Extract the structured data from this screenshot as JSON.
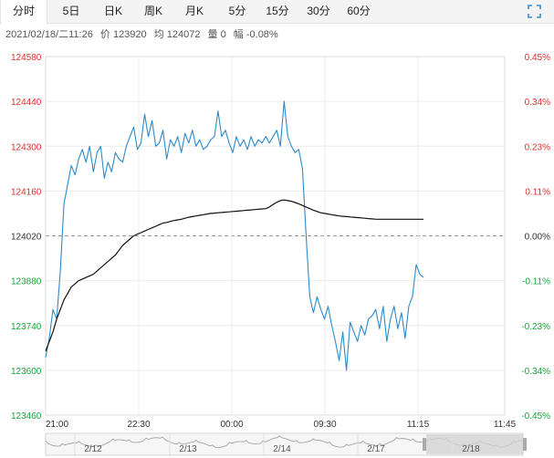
{
  "tabs": [
    {
      "label": "分时",
      "active": true
    },
    {
      "label": "5日",
      "active": false
    },
    {
      "label": "日K",
      "active": false
    },
    {
      "label": "周K",
      "active": false
    },
    {
      "label": "月K",
      "active": false
    },
    {
      "label": "5分",
      "active": false
    },
    {
      "label": "15分",
      "active": false
    },
    {
      "label": "30分",
      "active": false
    },
    {
      "label": "60分",
      "active": false
    }
  ],
  "info": {
    "datetime": "2021/02/18/二11:26",
    "price": "价 123920",
    "avg": "均 124072",
    "volume": "量 0",
    "change": "幅 -0.08%"
  },
  "icons": {
    "fullscreen": "fullscreen-icon"
  },
  "colors": {
    "price_line": "#2b8bcc",
    "avg_line": "#111111",
    "up": "#e0302b",
    "down": "#1aa53a",
    "grid": "#ececec",
    "baseline": "#999999"
  },
  "chart_data": {
    "type": "line",
    "y_ticks": [
      "124580",
      "124440",
      "124300",
      "124160",
      "124020",
      "123880",
      "123740",
      "123600",
      "123460"
    ],
    "y_values": [
      124580,
      124440,
      124300,
      124160,
      124020,
      123880,
      123740,
      123600,
      123460
    ],
    "pct_ticks": [
      "0.45%",
      "0.34%",
      "0.23%",
      "0.11%",
      "0.00%",
      "-0.11%",
      "-0.23%",
      "-0.34%",
      "-0.45%"
    ],
    "x_ticks": [
      "21:00",
      "22:30",
      "00:00",
      "09:30",
      "11:15",
      "11:45"
    ],
    "ylim": [
      123460,
      124580
    ],
    "baseline": 124020,
    "series": [
      {
        "values": [
          123640,
          123700,
          123790,
          123760,
          123910,
          124120,
          124180,
          124240,
          124210,
          124260,
          124290,
          124250,
          124300,
          124220,
          124280,
          124300,
          124200,
          124250,
          124220,
          124280,
          124260,
          124250,
          124300,
          124330,
          124360,
          124290,
          124310,
          124400,
          124330,
          124380,
          124300,
          124310,
          124350,
          124260,
          124320,
          124300,
          124330,
          124280,
          124340,
          124310,
          124350,
          124300,
          124320,
          124290,
          124300,
          124320,
          124330,
          124410,
          124330,
          124350,
          124310,
          124280,
          124330,
          124300,
          124320,
          124290,
          124330,
          124300,
          124320,
          124310,
          124330,
          124310,
          124330,
          124350,
          124300,
          124440,
          124330,
          124300,
          124280,
          124290,
          124230,
          124020,
          123830,
          123780,
          123830,
          123790,
          123760,
          123800,
          123740,
          123690,
          123630,
          123720,
          123600,
          123750,
          123720,
          123690,
          123740,
          123710,
          123760,
          123770,
          123790,
          123730,
          123800,
          123690,
          123760,
          123800,
          123730,
          123780,
          123700,
          123800,
          123830,
          123930,
          123900,
          123890
        ]
      },
      {
        "values": [
          123660,
          123690,
          123720,
          123760,
          123790,
          123820,
          123840,
          123860,
          123870,
          123880,
          123885,
          123890,
          123895,
          123900,
          123910,
          123920,
          123930,
          123940,
          123950,
          123960,
          123975,
          123990,
          124000,
          124010,
          124020,
          124025,
          124030,
          124035,
          124040,
          124045,
          124050,
          124055,
          124060,
          124062,
          124065,
          124068,
          124070,
          124072,
          124075,
          124078,
          124080,
          124082,
          124084,
          124086,
          124088,
          124090,
          124091,
          124092,
          124093,
          124094,
          124095,
          124096,
          124097,
          124098,
          124099,
          124100,
          124101,
          124102,
          124103,
          124104,
          124105,
          124110,
          124118,
          124125,
          124130,
          124132,
          124130,
          124128,
          124124,
          124120,
          124115,
          124110,
          124105,
          124100,
          124096,
          124092,
          124090,
          124088,
          124086,
          124084,
          124082,
          124081,
          124080,
          124079,
          124078,
          124077,
          124076,
          124075,
          124074,
          124073,
          124072,
          124072,
          124072,
          124072,
          124072,
          124072,
          124072,
          124072,
          124072,
          124072,
          124072,
          124072,
          124072,
          124072
        ]
      }
    ],
    "navigator_labels": [
      "2/12",
      "2/13",
      "2/14",
      "2/17",
      "2/18"
    ]
  }
}
